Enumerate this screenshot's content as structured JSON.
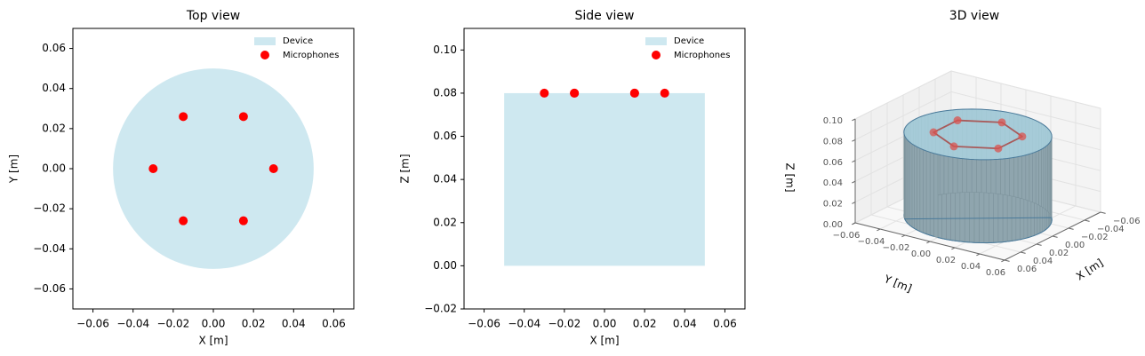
{
  "chart_data": [
    {
      "type": "scatter",
      "title": "Top view",
      "xlabel": "X [m]",
      "ylabel": "Y [m]",
      "xlim": [
        -0.07,
        0.07
      ],
      "ylim": [
        -0.07,
        0.07
      ],
      "xticks": [
        {
          "value": -0.06,
          "label": "−0.06"
        },
        {
          "value": -0.04,
          "label": "−0.04"
        },
        {
          "value": -0.02,
          "label": "−0.02"
        },
        {
          "value": 0,
          "label": "0.00"
        },
        0.02,
        0.04,
        0.06
      ],
      "yticks": [
        {
          "value": -0.06,
          "label": "−0.06"
        },
        {
          "value": -0.04,
          "label": "−0.04"
        },
        {
          "value": -0.02,
          "label": "−0.02"
        },
        {
          "value": 0,
          "label": "0.00"
        },
        0.02,
        0.04,
        0.06
      ],
      "legend": "upper right",
      "device": {
        "name": "Device",
        "color": "#add8e6",
        "shape": "circle",
        "center": [
          0,
          0
        ],
        "radius": 0.05
      },
      "series": [
        {
          "name": "Microphones",
          "color": "#ff0000",
          "x": [
            0.03,
            0.015,
            -0.015,
            -0.03,
            -0.015,
            0.015
          ],
          "values": [
            0,
            0.026,
            0.026,
            0,
            -0.026,
            -0.026
          ]
        }
      ]
    },
    {
      "type": "scatter",
      "title": "Side view",
      "xlabel": "X [m]",
      "ylabel": "Z [m]",
      "xlim": [
        -0.07,
        0.07
      ],
      "ylim": [
        -0.02,
        0.11
      ],
      "xticks": [
        {
          "value": -0.06,
          "label": "−0.06"
        },
        {
          "value": -0.04,
          "label": "−0.04"
        },
        {
          "value": -0.02,
          "label": "−0.02"
        },
        {
          "value": 0,
          "label": "0.00"
        },
        0.02,
        0.04,
        0.06
      ],
      "yticks": [
        {
          "value": -0.02,
          "label": "−0.02"
        },
        {
          "value": 0,
          "label": "0.00"
        },
        0.02,
        0.04,
        0.06,
        0.08,
        {
          "value": 0.1,
          "label": "0.10"
        }
      ],
      "legend": "upper right",
      "device": {
        "name": "Device",
        "color": "#add8e6",
        "shape": "rect",
        "xrange": [
          -0.05,
          0.05
        ],
        "yrange": [
          0,
          0.08
        ]
      },
      "series": [
        {
          "name": "Microphones",
          "color": "#ff0000",
          "x": [
            0.03,
            0.015,
            -0.015,
            -0.03,
            -0.015,
            0.015
          ],
          "values": [
            0.08,
            0.08,
            0.08,
            0.08,
            0.08,
            0.08
          ]
        }
      ]
    },
    {
      "type": "scatter3d",
      "title": "3D view",
      "xlabel": "X [m]",
      "ylabel": "Y [m]",
      "zlabel": "Z [m]",
      "xlim": [
        -0.06,
        0.06
      ],
      "ylim": [
        -0.06,
        0.06
      ],
      "zlim": [
        0,
        0.1
      ],
      "xticks": [
        {
          "value": -0.06,
          "label": "−0.06"
        },
        {
          "value": -0.04,
          "label": "−0.04"
        },
        {
          "value": -0.02,
          "label": "−0.02"
        },
        {
          "value": 0,
          "label": "0.00"
        },
        0.02,
        0.04,
        0.06
      ],
      "yticks": [
        {
          "value": -0.06,
          "label": "−0.06"
        },
        {
          "value": -0.04,
          "label": "−0.04"
        },
        {
          "value": -0.02,
          "label": "−0.02"
        },
        {
          "value": 0,
          "label": "0.00"
        },
        0.02,
        0.04,
        0.06
      ],
      "zticks": [
        {
          "value": 0,
          "label": "0.00"
        },
        0.02,
        0.04,
        0.06,
        0.08,
        {
          "value": 0.1,
          "label": "0.10"
        }
      ],
      "device": {
        "color": "#add8e6",
        "side_color": "#8fa5ae",
        "edge_color": "#4a7a9a",
        "shape": "cylinder",
        "radius": 0.05,
        "height": 0.08
      },
      "series": [
        {
          "color": "#d9534f",
          "ring_color": "#a85a5a",
          "x": [
            0.03,
            0.015,
            -0.015,
            -0.03,
            -0.015,
            0.015
          ],
          "y": [
            0,
            0.026,
            0.026,
            0,
            -0.026,
            -0.026
          ],
          "values": [
            0.08,
            0.08,
            0.08,
            0.08,
            0.08,
            0.08
          ]
        }
      ]
    }
  ]
}
